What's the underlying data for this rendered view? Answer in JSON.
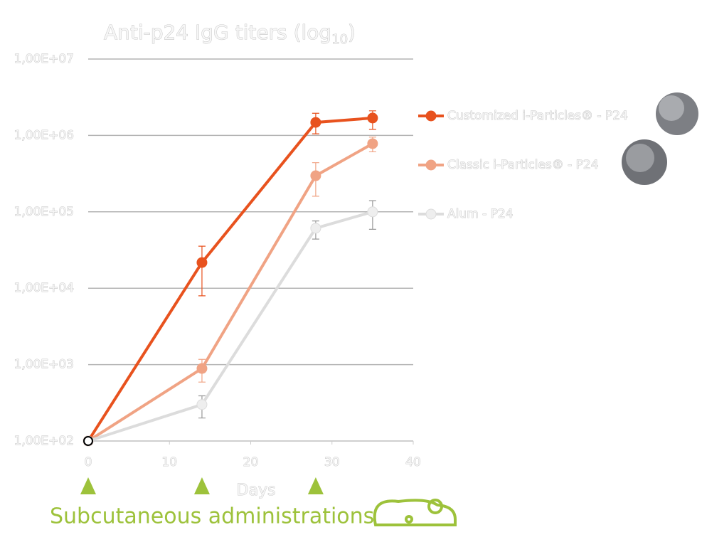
{
  "chart_data": {
    "type": "line",
    "title_parts": [
      "Anti-p24 IgG titers (log",
      "10",
      ")"
    ],
    "x_label": "Days",
    "x": [
      0,
      14,
      28,
      35
    ],
    "xlim": [
      0,
      40
    ],
    "xticks": [
      0,
      10,
      20,
      30,
      40
    ],
    "ylim": [
      100,
      10000000
    ],
    "log_y": true,
    "grid": true,
    "yticks": [
      {
        "value": 100,
        "label": "1,00E+02"
      },
      {
        "value": 1000,
        "label": "1,00E+03"
      },
      {
        "value": 10000,
        "label": "1,00E+04"
      },
      {
        "value": 100000,
        "label": "1,00E+05"
      },
      {
        "value": 1000000,
        "label": "1,00E+06"
      },
      {
        "value": 10000000,
        "label": "1,00E+07"
      }
    ],
    "series": [
      {
        "name": "Customized i-Particles® - P24",
        "color": "#e8521e",
        "values": [
          100,
          21700,
          1480000,
          1690000
        ],
        "error_bars": [
          null,
          [
            7950,
            35500
          ],
          [
            1050000,
            1950000
          ],
          [
            1200000,
            2100000
          ]
        ]
      },
      {
        "name": "Classic i-Particles® - P24",
        "color": "#f0a384",
        "values": [
          100,
          890,
          297000,
          780000
        ],
        "error_bars": [
          null,
          [
            590,
            1170
          ],
          [
            160000,
            440000
          ],
          [
            610000,
            950000
          ]
        ]
      },
      {
        "name": "Alum - P24",
        "color": "#eeeeee",
        "values": [
          100,
          300,
          61000,
          100000
        ],
        "error_bars": [
          null,
          [
            200,
            390
          ],
          [
            44000,
            76000
          ],
          [
            59000,
            140000
          ]
        ]
      }
    ],
    "administration_label": "Subcutaneous administrations",
    "administration_days": [
      0,
      14,
      28
    ],
    "administration_color": "#9dc23b"
  }
}
